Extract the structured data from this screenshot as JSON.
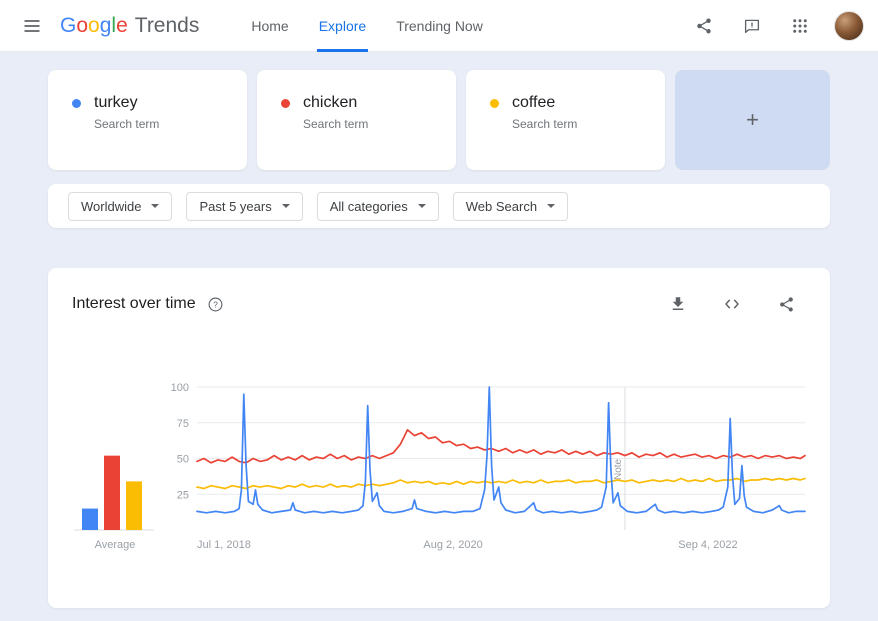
{
  "header": {
    "logo": {
      "letters": [
        {
          "ch": "G",
          "color": "#4285F4"
        },
        {
          "ch": "o",
          "color": "#EA4335"
        },
        {
          "ch": "o",
          "color": "#FBBC05"
        },
        {
          "ch": "g",
          "color": "#4285F4"
        },
        {
          "ch": "l",
          "color": "#34A853"
        },
        {
          "ch": "e",
          "color": "#EA4335"
        }
      ],
      "product": "Trends"
    },
    "nav": [
      {
        "label": "Home",
        "active": false
      },
      {
        "label": "Explore",
        "active": true
      },
      {
        "label": "Trending Now",
        "active": false
      }
    ],
    "accent_color": "#1a73e8"
  },
  "icons": {
    "menu": "hamburger",
    "share": "share-nodes",
    "feedback": "speech-bubble-exclamation",
    "apps": "grid-3x3-dots",
    "avatar": "user-photo",
    "help": "question-circle",
    "download": "arrow-down-tray",
    "embed": "angle-brackets",
    "dropdown": "caret-down",
    "add": "+"
  },
  "comparison": {
    "terms": [
      {
        "term": "turkey",
        "type": "Search term",
        "color": "#4285f4"
      },
      {
        "term": "chicken",
        "type": "Search term",
        "color": "#ea4335"
      },
      {
        "term": "coffee",
        "type": "Search term",
        "color": "#fbbc04"
      }
    ],
    "add_label": "+"
  },
  "filters": [
    {
      "label": "Worldwide"
    },
    {
      "label": "Past 5 years"
    },
    {
      "label": "All categories"
    },
    {
      "label": "Web Search"
    }
  ],
  "interest": {
    "title": "Interest over time"
  },
  "chart_data": {
    "type": "line",
    "title": "Interest over time",
    "ylim": [
      0,
      100
    ],
    "yticks": [
      25,
      50,
      75,
      100
    ],
    "grid": "horizontal",
    "average_label": "Average",
    "x_axis": {
      "unit": "weeks since Jul 1, 2018",
      "range": [
        0,
        260
      ],
      "tick_labels": [
        {
          "label": "Jul 1, 2018",
          "week": 0
        },
        {
          "label": "Aug 2, 2020",
          "week": 109.5
        },
        {
          "label": "Sep 4, 2022",
          "week": 218.5
        }
      ]
    },
    "note_marker": {
      "label": "Note",
      "week": 183
    },
    "series": [
      {
        "name": "turkey",
        "color": "#4285f4",
        "avg": 15,
        "points": [
          [
            0,
            13
          ],
          [
            4,
            12
          ],
          [
            8,
            13
          ],
          [
            12,
            12
          ],
          [
            16,
            13
          ],
          [
            18,
            15
          ],
          [
            19,
            28
          ],
          [
            20,
            95
          ],
          [
            21,
            45
          ],
          [
            22,
            20
          ],
          [
            24,
            18
          ],
          [
            25,
            28
          ],
          [
            26,
            18
          ],
          [
            28,
            14
          ],
          [
            32,
            12
          ],
          [
            36,
            13
          ],
          [
            40,
            14
          ],
          [
            41,
            19
          ],
          [
            42,
            14
          ],
          [
            46,
            12
          ],
          [
            50,
            13
          ],
          [
            54,
            12
          ],
          [
            58,
            13
          ],
          [
            62,
            12
          ],
          [
            66,
            13
          ],
          [
            69,
            14
          ],
          [
            71,
            17
          ],
          [
            72,
            34
          ],
          [
            73,
            87
          ],
          [
            74,
            42
          ],
          [
            75,
            20
          ],
          [
            77,
            26
          ],
          [
            78,
            17
          ],
          [
            80,
            13
          ],
          [
            84,
            12
          ],
          [
            88,
            13
          ],
          [
            92,
            15
          ],
          [
            93,
            21
          ],
          [
            94,
            15
          ],
          [
            98,
            13
          ],
          [
            102,
            12
          ],
          [
            106,
            13
          ],
          [
            110,
            12
          ],
          [
            114,
            13
          ],
          [
            118,
            13
          ],
          [
            121,
            15
          ],
          [
            123,
            28
          ],
          [
            124,
            52
          ],
          [
            125,
            100
          ],
          [
            126,
            45
          ],
          [
            127,
            21
          ],
          [
            129,
            30
          ],
          [
            130,
            19
          ],
          [
            132,
            14
          ],
          [
            136,
            12
          ],
          [
            140,
            13
          ],
          [
            144,
            19
          ],
          [
            145,
            14
          ],
          [
            148,
            12
          ],
          [
            152,
            13
          ],
          [
            156,
            12
          ],
          [
            160,
            13
          ],
          [
            164,
            12
          ],
          [
            168,
            13
          ],
          [
            171,
            14
          ],
          [
            173,
            16
          ],
          [
            175,
            30
          ],
          [
            176,
            89
          ],
          [
            177,
            42
          ],
          [
            178,
            19
          ],
          [
            180,
            26
          ],
          [
            181,
            17
          ],
          [
            184,
            13
          ],
          [
            188,
            12
          ],
          [
            192,
            13
          ],
          [
            196,
            18
          ],
          [
            197,
            14
          ],
          [
            200,
            12
          ],
          [
            204,
            13
          ],
          [
            208,
            12
          ],
          [
            212,
            13
          ],
          [
            216,
            12
          ],
          [
            220,
            13
          ],
          [
            223,
            14
          ],
          [
            225,
            16
          ],
          [
            227,
            30
          ],
          [
            228,
            78
          ],
          [
            229,
            38
          ],
          [
            230,
            18
          ],
          [
            232,
            22
          ],
          [
            233,
            45
          ],
          [
            234,
            24
          ],
          [
            235,
            16
          ],
          [
            238,
            13
          ],
          [
            242,
            12
          ],
          [
            246,
            14
          ],
          [
            249,
            17
          ],
          [
            250,
            14
          ],
          [
            253,
            12
          ],
          [
            256,
            13
          ],
          [
            260,
            13
          ]
        ]
      },
      {
        "name": "chicken",
        "color": "#ea4335",
        "avg": 52,
        "points": [
          [
            0,
            48
          ],
          [
            3,
            50
          ],
          [
            6,
            47
          ],
          [
            9,
            49
          ],
          [
            12,
            48
          ],
          [
            15,
            51
          ],
          [
            18,
            48
          ],
          [
            21,
            47
          ],
          [
            24,
            50
          ],
          [
            27,
            48
          ],
          [
            30,
            49
          ],
          [
            33,
            52
          ],
          [
            36,
            49
          ],
          [
            39,
            51
          ],
          [
            42,
            49
          ],
          [
            45,
            52
          ],
          [
            48,
            49
          ],
          [
            51,
            51
          ],
          [
            54,
            50
          ],
          [
            57,
            53
          ],
          [
            60,
            50
          ],
          [
            63,
            52
          ],
          [
            66,
            49
          ],
          [
            69,
            51
          ],
          [
            72,
            50
          ],
          [
            75,
            52
          ],
          [
            78,
            50
          ],
          [
            81,
            52
          ],
          [
            84,
            54
          ],
          [
            87,
            60
          ],
          [
            90,
            70
          ],
          [
            93,
            66
          ],
          [
            96,
            68
          ],
          [
            99,
            64
          ],
          [
            102,
            65
          ],
          [
            105,
            61
          ],
          [
            108,
            62
          ],
          [
            111,
            59
          ],
          [
            114,
            60
          ],
          [
            117,
            57
          ],
          [
            120,
            58
          ],
          [
            123,
            56
          ],
          [
            126,
            57
          ],
          [
            129,
            55
          ],
          [
            132,
            57
          ],
          [
            135,
            54
          ],
          [
            138,
            56
          ],
          [
            141,
            54
          ],
          [
            144,
            56
          ],
          [
            147,
            53
          ],
          [
            150,
            55
          ],
          [
            153,
            54
          ],
          [
            156,
            56
          ],
          [
            159,
            53
          ],
          [
            162,
            55
          ],
          [
            165,
            53
          ],
          [
            168,
            55
          ],
          [
            171,
            52
          ],
          [
            174,
            54
          ],
          [
            177,
            53
          ],
          [
            180,
            54
          ],
          [
            183,
            52
          ],
          [
            186,
            54
          ],
          [
            189,
            51
          ],
          [
            192,
            53
          ],
          [
            195,
            52
          ],
          [
            198,
            54
          ],
          [
            201,
            51
          ],
          [
            204,
            53
          ],
          [
            207,
            51
          ],
          [
            210,
            52
          ],
          [
            213,
            53
          ],
          [
            216,
            51
          ],
          [
            219,
            52
          ],
          [
            222,
            50
          ],
          [
            225,
            52
          ],
          [
            228,
            51
          ],
          [
            231,
            53
          ],
          [
            234,
            51
          ],
          [
            237,
            52
          ],
          [
            240,
            50
          ],
          [
            243,
            52
          ],
          [
            246,
            51
          ],
          [
            249,
            52
          ],
          [
            252,
            50
          ],
          [
            255,
            51
          ],
          [
            258,
            50
          ],
          [
            260,
            52
          ]
        ]
      },
      {
        "name": "coffee",
        "color": "#fbbc04",
        "avg": 34,
        "points": [
          [
            0,
            30
          ],
          [
            3,
            29
          ],
          [
            6,
            31
          ],
          [
            9,
            30
          ],
          [
            12,
            29
          ],
          [
            15,
            31
          ],
          [
            18,
            30
          ],
          [
            21,
            29
          ],
          [
            24,
            31
          ],
          [
            27,
            30
          ],
          [
            30,
            31
          ],
          [
            33,
            30
          ],
          [
            36,
            29
          ],
          [
            39,
            31
          ],
          [
            42,
            30
          ],
          [
            45,
            32
          ],
          [
            48,
            30
          ],
          [
            51,
            31
          ],
          [
            54,
            30
          ],
          [
            57,
            32
          ],
          [
            60,
            30
          ],
          [
            63,
            31
          ],
          [
            66,
            30
          ],
          [
            69,
            32
          ],
          [
            72,
            31
          ],
          [
            75,
            32
          ],
          [
            78,
            31
          ],
          [
            81,
            32
          ],
          [
            84,
            33
          ],
          [
            87,
            35
          ],
          [
            90,
            33
          ],
          [
            93,
            34
          ],
          [
            96,
            33
          ],
          [
            99,
            34
          ],
          [
            102,
            32
          ],
          [
            105,
            33
          ],
          [
            108,
            32
          ],
          [
            111,
            34
          ],
          [
            114,
            32
          ],
          [
            117,
            34
          ],
          [
            120,
            33
          ],
          [
            123,
            34
          ],
          [
            126,
            33
          ],
          [
            129,
            34
          ],
          [
            132,
            33
          ],
          [
            135,
            35
          ],
          [
            138,
            33
          ],
          [
            141,
            34
          ],
          [
            144,
            33
          ],
          [
            147,
            35
          ],
          [
            150,
            33
          ],
          [
            153,
            34
          ],
          [
            156,
            34
          ],
          [
            159,
            35
          ],
          [
            162,
            33
          ],
          [
            165,
            34
          ],
          [
            168,
            34
          ],
          [
            171,
            35
          ],
          [
            174,
            33
          ],
          [
            177,
            34
          ],
          [
            180,
            35
          ],
          [
            183,
            34
          ],
          [
            186,
            35
          ],
          [
            189,
            33
          ],
          [
            192,
            34
          ],
          [
            195,
            35
          ],
          [
            198,
            34
          ],
          [
            201,
            35
          ],
          [
            204,
            34
          ],
          [
            207,
            36
          ],
          [
            210,
            34
          ],
          [
            213,
            35
          ],
          [
            216,
            34
          ],
          [
            219,
            36
          ],
          [
            222,
            34
          ],
          [
            225,
            35
          ],
          [
            228,
            35
          ],
          [
            231,
            36
          ],
          [
            234,
            34
          ],
          [
            237,
            35
          ],
          [
            240,
            35
          ],
          [
            243,
            36
          ],
          [
            246,
            35
          ],
          [
            249,
            36
          ],
          [
            252,
            35
          ],
          [
            255,
            36
          ],
          [
            258,
            35
          ],
          [
            260,
            36
          ]
        ]
      }
    ]
  }
}
